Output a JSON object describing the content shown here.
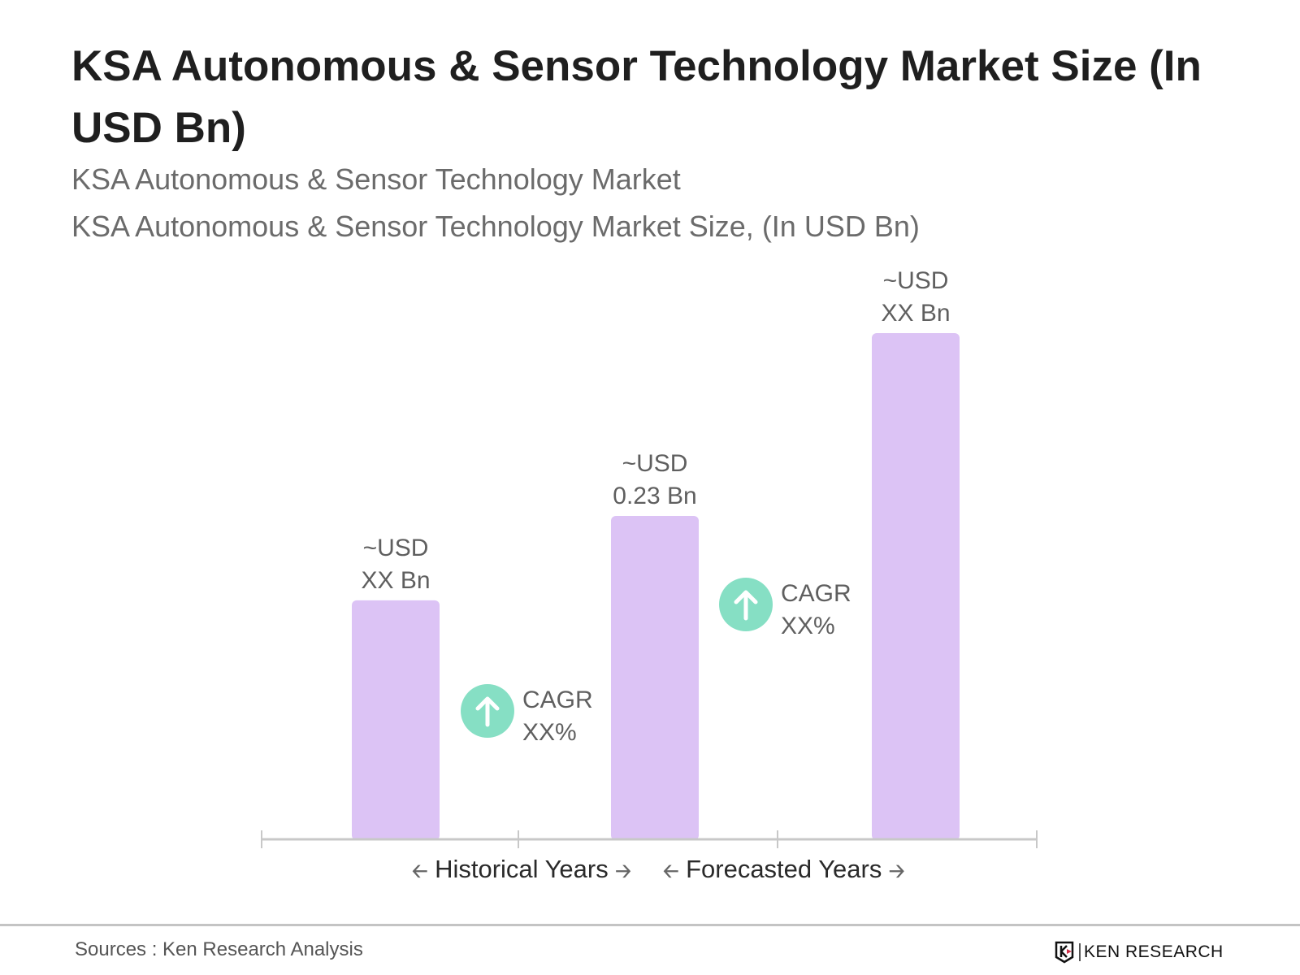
{
  "header": {
    "title": "KSA Autonomous & Sensor Technology Market Size (In USD Bn)",
    "subtitle1": "KSA Autonomous & Sensor Technology Market",
    "subtitle2": "KSA Autonomous & Sensor Technology Market Size, (In USD Bn)"
  },
  "chart_data": {
    "type": "bar",
    "categories": [
      "",
      "",
      ""
    ],
    "values": [
      0.17,
      0.23,
      0.36
    ],
    "data_labels": [
      [
        "~USD",
        "XX Bn"
      ],
      [
        "~USD",
        "0.23 Bn"
      ],
      [
        "~USD",
        "XX Bn"
      ]
    ],
    "annotations": [
      {
        "line1": "CAGR",
        "line2": "XX%",
        "icon": "arrow-up-circle-icon"
      },
      {
        "line1": "CAGR",
        "line2": "XX%",
        "icon": "arrow-up-circle-icon"
      }
    ],
    "legend": {
      "historical": "Historical Years",
      "forecasted": "Forecasted Years"
    },
    "colors": {
      "bar": "#dcc3f5",
      "cagr": "#86dfc4",
      "axis": "#c8c8c8"
    }
  },
  "footer": {
    "source": "Sources : Ken Research Analysis",
    "logo_text": "KEN RESEARCH"
  }
}
